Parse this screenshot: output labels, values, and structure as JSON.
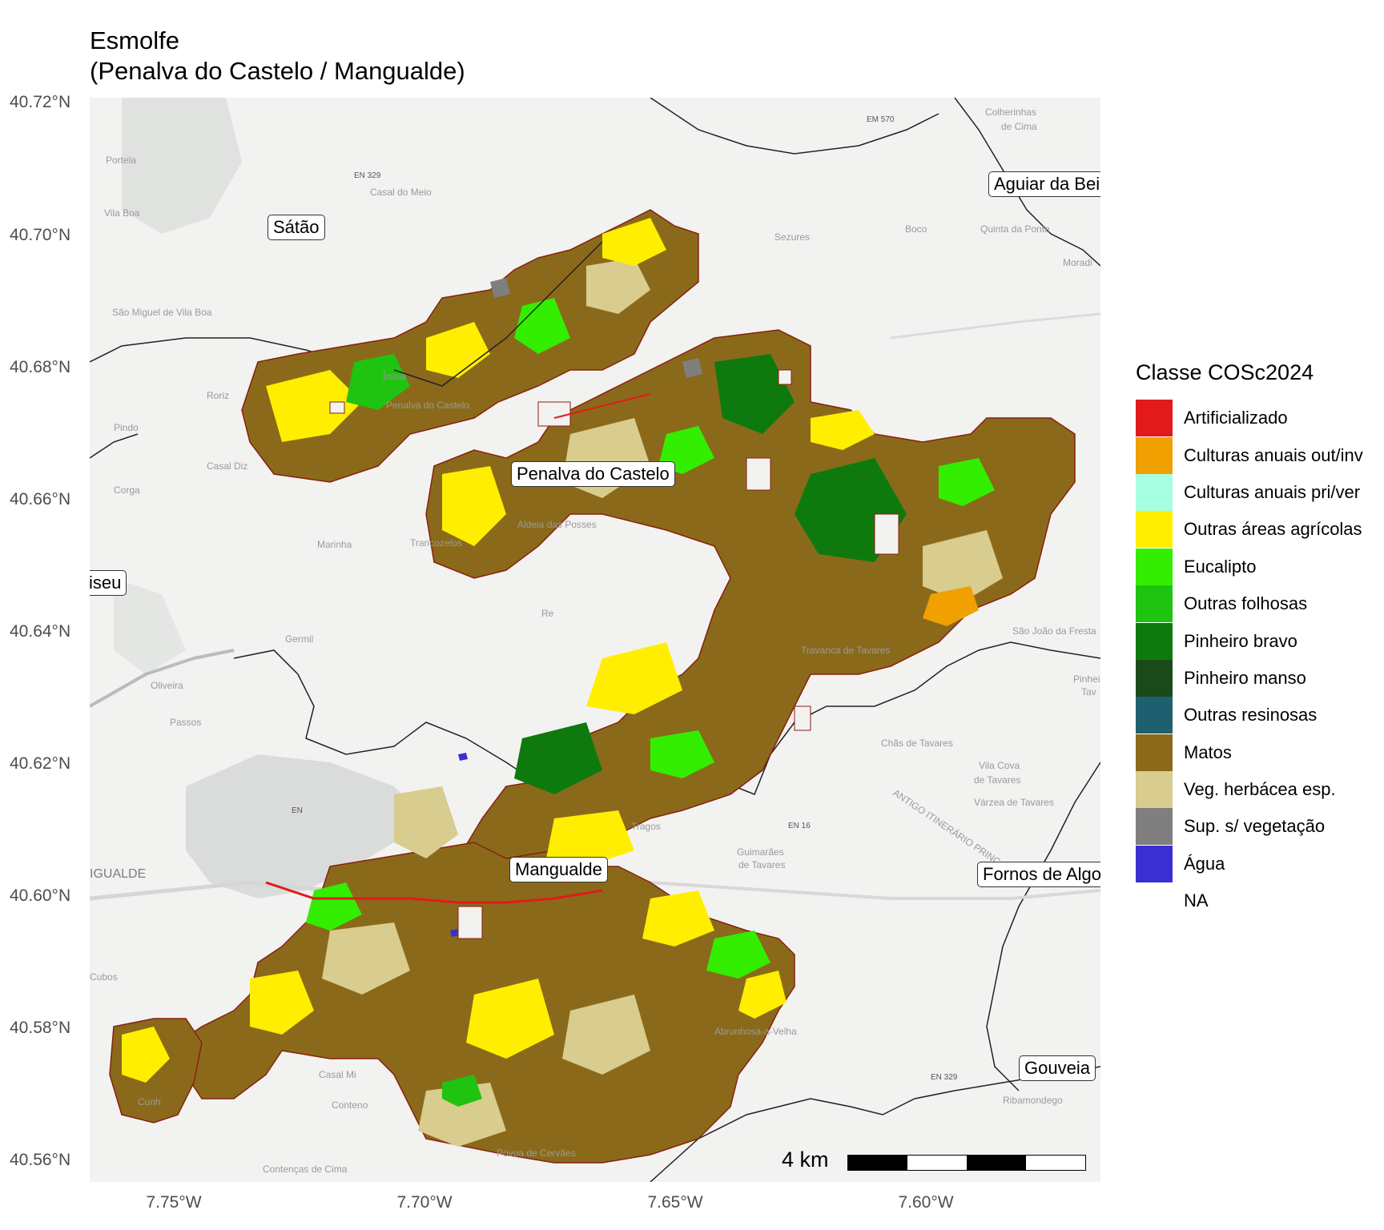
{
  "title": {
    "line1": "Esmolfe",
    "line2": "(Penalva do Castelo / Mangualde)"
  },
  "axes": {
    "y_ticks": [
      "40.72°N",
      "40.70°N",
      "40.68°N",
      "40.66°N",
      "40.64°N",
      "40.62°N",
      "40.60°N",
      "40.58°N",
      "40.56°N"
    ],
    "x_ticks": [
      "7.75°W",
      "7.70°W",
      "7.65°W",
      "7.60°W"
    ]
  },
  "place_labels": [
    "Sátão",
    "Aguiar da Bei",
    "Penalva do Castelo",
    "iseu",
    "Mangualde",
    "Fornos de Algo",
    "Gouveia"
  ],
  "basemap_labels": [
    "Portela",
    "EN 329",
    "Casal do Meio",
    "Vila Boa",
    "Sezures",
    "Boco",
    "Quinta da Ponte",
    "Colherinhas",
    "de Cima",
    "EM 570",
    "Moradi",
    "São Miguel de Vila Boa",
    "Ínsua",
    "Penalva do Castelo",
    "Roriz",
    "Pindo",
    "Casal Diz",
    "Corga",
    "Aldeia das Posses",
    "Marinha",
    "Trancozelos",
    "Germil",
    "Oliveira",
    "Passos",
    "Travanca de Tavares",
    "São João da Fresta",
    "Pinheiro",
    "Tav",
    "Chãs de Tavares",
    "Vila Cova",
    "de Tavares",
    "Várzea de Tavares",
    "ANTIGO ITINERÁRIO PRINC",
    "EN 16",
    "Tragos",
    "Guimarães",
    "de Tavares",
    "IGUALDE",
    "Cubos",
    "Abrunhosa-a-Velha",
    "EN 329",
    "Ribamondego",
    "Casal Mi",
    "Conteno",
    "Cunh",
    "Póvoa de Cervães",
    "Contenças de Cima",
    "Re",
    "EN"
  ],
  "legend": {
    "title": "Classe COSc2024",
    "items": [
      {
        "label": "Artificializado",
        "color": "#e31a1c"
      },
      {
        "label": "Culturas anuais out/inv",
        "color": "#f0a000"
      },
      {
        "label": "Culturas anuais pri/ver",
        "color": "#a6ffe0"
      },
      {
        "label": "Outras áreas agrícolas",
        "color": "#ffee00"
      },
      {
        "label": "Eucalipto",
        "color": "#33ee00"
      },
      {
        "label": "Outras folhosas",
        "color": "#1ec40f"
      },
      {
        "label": "Pinheiro bravo",
        "color": "#0e7a0e"
      },
      {
        "label": "Pinheiro manso",
        "color": "#1a4a1a"
      },
      {
        "label": "Outras resinosas",
        "color": "#1f6070"
      },
      {
        "label": "Matos",
        "color": "#8a6a1a"
      },
      {
        "label": "Veg. herbácea esp.",
        "color": "#d8cc8e"
      },
      {
        "label": "Sup. s/ vegetação",
        "color": "#7f7f7f"
      },
      {
        "label": "Água",
        "color": "#3a2fd0"
      },
      {
        "label": "NA",
        "color": "transparent"
      }
    ]
  },
  "scale_bar": {
    "label": "4 km"
  }
}
